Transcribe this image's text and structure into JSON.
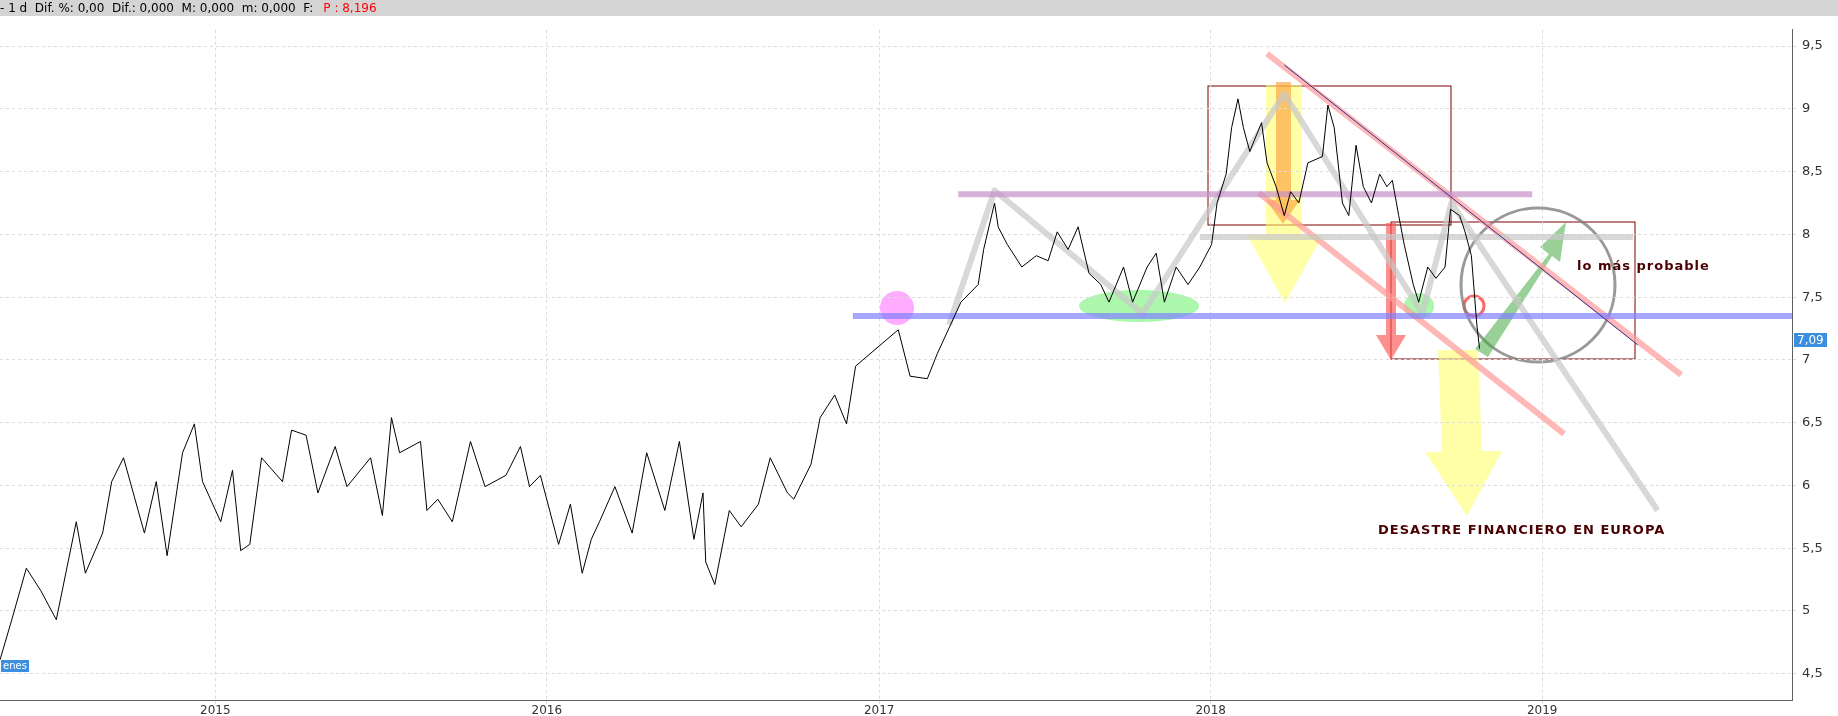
{
  "chart_data": {
    "type": "line",
    "title": "- 1 d  Dif. %: 0,00  Dif.: 0,000  M: 0,000  m: 0,000  F:",
    "subtitle": "P : 8,196",
    "xlim": [
      "2014-05-09",
      "2019-10-03"
    ],
    "xticks": [
      {
        "value": "2015-01-01",
        "label": "2015"
      },
      {
        "value": "2016-01-01",
        "label": "2016"
      },
      {
        "value": "2017-01-01",
        "label": "2017"
      },
      {
        "value": "2018-01-01",
        "label": "2018"
      },
      {
        "value": "2019-01-01",
        "label": "2019"
      }
    ],
    "ylim": [
      4.29,
      9.63
    ],
    "yticks": [
      {
        "value": 4.5,
        "label": "4,5"
      },
      5,
      {
        "value": 5.5,
        "label": "5,5"
      },
      6,
      {
        "value": 6.5,
        "label": "6,5"
      },
      7,
      {
        "value": 7.5,
        "label": "7,5"
      },
      8,
      {
        "value": 8.5,
        "label": "8,5"
      },
      9,
      {
        "value": 9.5,
        "label": "9,5"
      }
    ],
    "grid": true,
    "marker": "none",
    "line_style": "solid",
    "series": [
      {
        "type": "line",
        "color": "#000000",
        "x": [
          "2014-05-09",
          "2014-05-22",
          "2014-06-07",
          "2014-06-23",
          "2014-07-10",
          "2014-08-01",
          "2014-08-11",
          "2014-08-30",
          "2014-09-09",
          "2014-09-22",
          "2014-10-15",
          "2014-10-28",
          "2014-11-09",
          "2014-11-26",
          "2014-12-09",
          "2014-12-18",
          "2015-01-07",
          "2015-01-20",
          "2015-01-29",
          "2015-02-08",
          "2015-02-21",
          "2015-03-16",
          "2015-03-26",
          "2015-04-11",
          "2015-04-24",
          "2015-05-13",
          "2015-05-26",
          "2015-06-21",
          "2015-07-04",
          "2015-07-14",
          "2015-07-23",
          "2015-08-15",
          "2015-08-22",
          "2015-09-03",
          "2015-09-19",
          "2015-10-09",
          "2015-10-25",
          "2015-11-17",
          "2015-12-03",
          "2015-12-13",
          "2015-12-25",
          "2016-01-14",
          "2016-01-27",
          "2016-02-09",
          "2016-02-19",
          "2016-02-28",
          "2016-03-16",
          "2016-04-04",
          "2016-04-20",
          "2016-05-10",
          "2016-05-26",
          "2016-06-11",
          "2016-06-21",
          "2016-06-24",
          "2016-07-04",
          "2016-07-20",
          "2016-08-02",
          "2016-08-21",
          "2016-09-03",
          "2016-09-22",
          "2016-09-29",
          "2016-10-18",
          "2016-10-28",
          "2016-11-13",
          "2016-11-26",
          "2016-12-06",
          "2017-01-22",
          "2017-02-04",
          "2017-02-23",
          "2017-03-06",
          "2017-04-01",
          "2017-04-20",
          "2017-04-26",
          "2017-05-08",
          "2017-05-12",
          "2017-05-22",
          "2017-06-07",
          "2017-06-23",
          "2017-07-06",
          "2017-07-16",
          "2017-07-28",
          "2017-08-08",
          "2017-08-20",
          "2017-09-02",
          "2017-09-11",
          "2017-09-27",
          "2017-10-07",
          "2017-10-23",
          "2017-11-02",
          "2017-11-11",
          "2017-11-24",
          "2017-12-07",
          "2017-12-20",
          "2018-01-02",
          "2018-01-08",
          "2018-01-18",
          "2018-01-24",
          "2018-01-31",
          "2018-02-06",
          "2018-02-13",
          "2018-02-26",
          "2018-03-04",
          "2018-03-14",
          "2018-03-23",
          "2018-03-30",
          "2018-04-08",
          "2018-04-18",
          "2018-05-04",
          "2018-05-10",
          "2018-05-17",
          "2018-05-26",
          "2018-06-02",
          "2018-06-10",
          "2018-06-18",
          "2018-06-27",
          "2018-07-06",
          "2018-07-14",
          "2018-07-20",
          "2018-07-27",
          "2018-08-02",
          "2018-08-12",
          "2018-08-18",
          "2018-08-28",
          "2018-09-06",
          "2018-09-16",
          "2018-09-22",
          "2018-10-02",
          "2018-10-08",
          "2018-10-15",
          "2018-10-21",
          "2018-10-24"
        ],
        "values": [
          4.61,
          4.93,
          5.34,
          5.16,
          4.93,
          5.71,
          5.3,
          5.62,
          6.03,
          6.22,
          5.62,
          6.03,
          5.44,
          6.26,
          6.49,
          6.03,
          5.71,
          6.12,
          5.48,
          5.53,
          6.22,
          6.03,
          6.44,
          6.4,
          5.94,
          6.31,
          5.99,
          6.22,
          5.76,
          6.54,
          6.26,
          6.35,
          5.8,
          5.89,
          5.71,
          6.35,
          5.99,
          6.08,
          6.31,
          5.99,
          6.08,
          5.53,
          5.85,
          5.3,
          5.57,
          5.71,
          5.99,
          5.62,
          6.26,
          5.8,
          6.35,
          5.57,
          5.94,
          5.39,
          5.21,
          5.8,
          5.67,
          5.85,
          6.22,
          5.94,
          5.89,
          6.17,
          6.54,
          6.72,
          6.49,
          6.95,
          7.24,
          6.87,
          6.85,
          7.05,
          7.46,
          7.6,
          7.88,
          8.25,
          8.06,
          7.92,
          7.74,
          7.83,
          7.79,
          8.02,
          7.88,
          8.06,
          7.69,
          7.6,
          7.46,
          7.74,
          7.46,
          7.74,
          7.85,
          7.46,
          7.74,
          7.6,
          7.74,
          7.92,
          8.25,
          8.48,
          8.85,
          9.08,
          8.85,
          8.66,
          8.89,
          8.57,
          8.38,
          8.15,
          8.34,
          8.25,
          8.57,
          8.62,
          9.03,
          8.85,
          8.25,
          8.15,
          8.71,
          8.38,
          8.25,
          8.48,
          8.38,
          8.43,
          8.15,
          7.92,
          7.6,
          7.46,
          7.74,
          7.65,
          7.74,
          8.2,
          8.15,
          8.02,
          7.83,
          7.28,
          7.09
        ]
      },
      {
        "type": "line",
        "color": "#8080ff",
        "x": [
          "2016-12-03",
          "2019-10-03"
        ],
        "values": [
          7.35,
          7.35
        ]
      },
      {
        "type": "line",
        "color": "#c890c8",
        "x": [
          "2017-03-29",
          "2018-12-21"
        ],
        "values": [
          8.32,
          8.32
        ]
      },
      {
        "type": "line",
        "color": "#c8c8c8",
        "x": [
          "2017-03-19",
          "2017-05-08",
          "2017-10-18",
          "2018-03-23",
          "2018-08-22",
          "2018-09-23",
          "2019-05-08"
        ],
        "values": [
          7.28,
          8.35,
          7.37,
          9.12,
          7.37,
          8.25,
          5.8
        ]
      },
      {
        "type": "line",
        "color": "#c8c8c8",
        "x": [
          "2017-12-20",
          "2019-04-11"
        ],
        "values": [
          7.98,
          7.98
        ]
      },
      {
        "type": "line",
        "color": "#ff9a9a",
        "x": [
          "2018-03-04",
          "2019-06-03"
        ],
        "values": [
          9.44,
          6.88
        ]
      },
      {
        "type": "line",
        "color": "#ff9a9a",
        "x": [
          "2018-02-23",
          "2019-01-25"
        ],
        "values": [
          8.33,
          6.41
        ]
      },
      {
        "type": "line",
        "color": "#303090",
        "x": [
          "2018-03-23",
          "2019-04-16"
        ],
        "values": [
          9.35,
          7.12
        ]
      }
    ],
    "annotations": [
      "lo más probable",
      "DESASTRE FINANCIERO EN EUROPA",
      "7,09",
      "enes"
    ]
  }
}
